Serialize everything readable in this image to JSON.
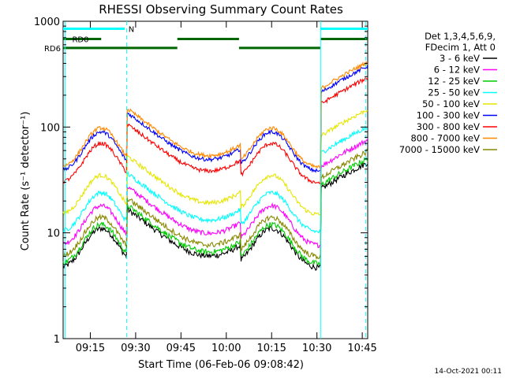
{
  "chart_data": {
    "type": "line",
    "title": "RHESSI Observing Summary Count Rates",
    "xlabel": "Start Time (06-Feb-06 09:08:42)",
    "ylabel": "Count Rate (s⁻¹ detector⁻¹)",
    "footer_date": "14-Oct-2021 00:11",
    "y_scale": "log",
    "ylim": [
      1,
      1000
    ],
    "xlim_minutes": [
      9.1,
      10.78
    ],
    "x_ticks": [
      {
        "label": "09:15",
        "value": 9.25
      },
      {
        "label": "09:30",
        "value": 9.5
      },
      {
        "label": "09:45",
        "value": 9.75
      },
      {
        "label": "10:00",
        "value": 10.0
      },
      {
        "label": "10:15",
        "value": 10.25
      },
      {
        "label": "10:30",
        "value": 10.5
      },
      {
        "label": "10:45",
        "value": 10.75
      }
    ],
    "y_ticks": [
      {
        "label": "1",
        "value": 1
      },
      {
        "label": "10",
        "value": 10
      },
      {
        "label": "100",
        "value": 100
      },
      {
        "label": "1000",
        "value": 1000
      }
    ],
    "legend_header": [
      "Det 1,3,4,5,6,9,",
      "FDecim 1, Att 0"
    ],
    "series": [
      {
        "name": "3 - 6 keV",
        "color": "#000000",
        "day_peak": 11,
        "night": 0
      },
      {
        "name": "6 - 12 keV",
        "color": "#ff00ff",
        "day_peak": 18,
        "night": 0
      },
      {
        "name": "12 - 25 keV",
        "color": "#00cc00",
        "day_peak": 12,
        "night": 7
      },
      {
        "name": "25 - 50 keV",
        "color": "#00ffff",
        "day_peak": 24,
        "night": 23
      },
      {
        "name": "50 - 100 keV",
        "color": "#e6e600",
        "day_peak": 35,
        "night": 0
      },
      {
        "name": "100 - 300 keV",
        "color": "#0000ff",
        "day_peak": 90,
        "night": 0
      },
      {
        "name": "300 - 800 keV",
        "color": "#ff0000",
        "day_peak": 70,
        "night": 0
      },
      {
        "name": "800 - 7000 keV",
        "color": "#ff8800",
        "day_peak": 98,
        "night": 0
      },
      {
        "name": "7000 - 15000 keV",
        "color": "#888800",
        "day_peak": 14,
        "night": 0
      }
    ],
    "flags": [
      {
        "name": "N",
        "color": "#00ffff",
        "segments": [
          [
            9.1,
            9.44
          ],
          [
            10.52,
            10.78
          ]
        ],
        "level": 850
      },
      {
        "name": "RD0",
        "color": "#006600",
        "segments": [
          [
            9.1,
            9.31
          ],
          [
            9.73,
            10.07
          ],
          [
            10.52,
            10.78
          ]
        ],
        "level": 680
      },
      {
        "name": "RD6",
        "color": "#006600",
        "segments": [
          [
            9.1,
            9.73
          ],
          [
            10.07,
            10.52
          ]
        ],
        "level": 560
      }
    ],
    "day_night_boundaries": [
      9.45,
      9.73,
      10.08,
      10.52
    ],
    "saa_lines": [
      9.11,
      9.45,
      10.52,
      10.77
    ],
    "grid": false,
    "legend_position": "right"
  },
  "labels": {
    "rd0": "RD0",
    "rd6": "RD6",
    "n": "N"
  }
}
